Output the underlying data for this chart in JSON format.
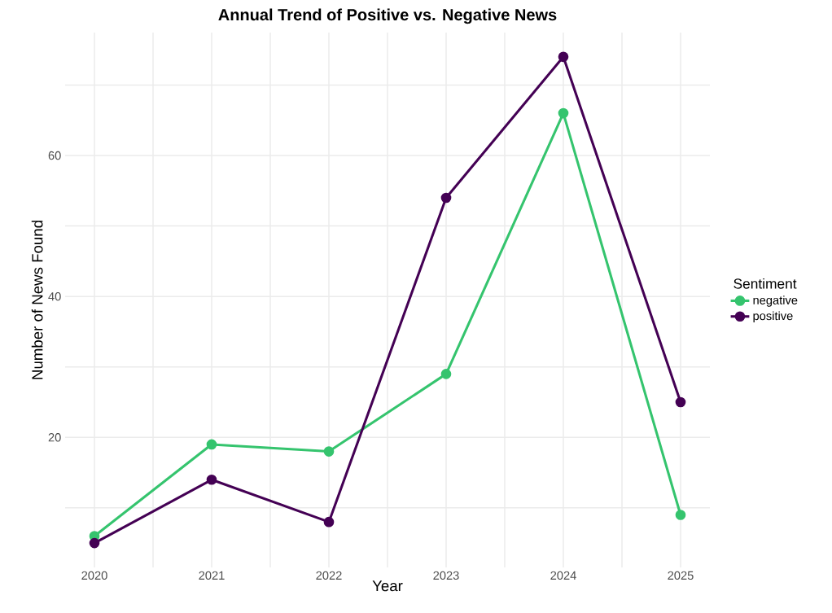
{
  "chart_data": {
    "type": "line",
    "title": "Annual Trend of Positive vs. Negative News",
    "xlabel": "Year",
    "ylabel": "Number of News Found",
    "legend_title": "Sentiment",
    "x": [
      2020,
      2021,
      2022,
      2023,
      2024,
      2025
    ],
    "series": [
      {
        "name": "negative",
        "color": "#35c46e",
        "values": [
          6,
          19,
          18,
          29,
          66,
          9
        ]
      },
      {
        "name": "positive",
        "color": "#440154",
        "values": [
          5,
          14,
          8,
          54,
          74,
          25
        ]
      }
    ],
    "xlim": [
      2019.75,
      2025.25
    ],
    "ylim": [
      1.55,
      77.45
    ],
    "xticks": [
      2020,
      {
        "value": 2020.5,
        "label": null
      },
      2021,
      {
        "value": 2021.5,
        "label": null
      },
      2022,
      {
        "value": 2022.5,
        "label": null
      },
      2023,
      {
        "value": 2023.5,
        "label": null
      },
      2024,
      {
        "value": 2024.5,
        "label": null
      },
      2025
    ],
    "yticks": [
      {
        "value": 10,
        "label": null
      },
      20,
      {
        "value": 30,
        "label": null
      },
      40,
      {
        "value": 50,
        "label": null
      },
      60,
      {
        "value": 70,
        "label": null
      }
    ],
    "grid": true,
    "legend": "right",
    "marker": "circle",
    "line_style": "solid"
  }
}
